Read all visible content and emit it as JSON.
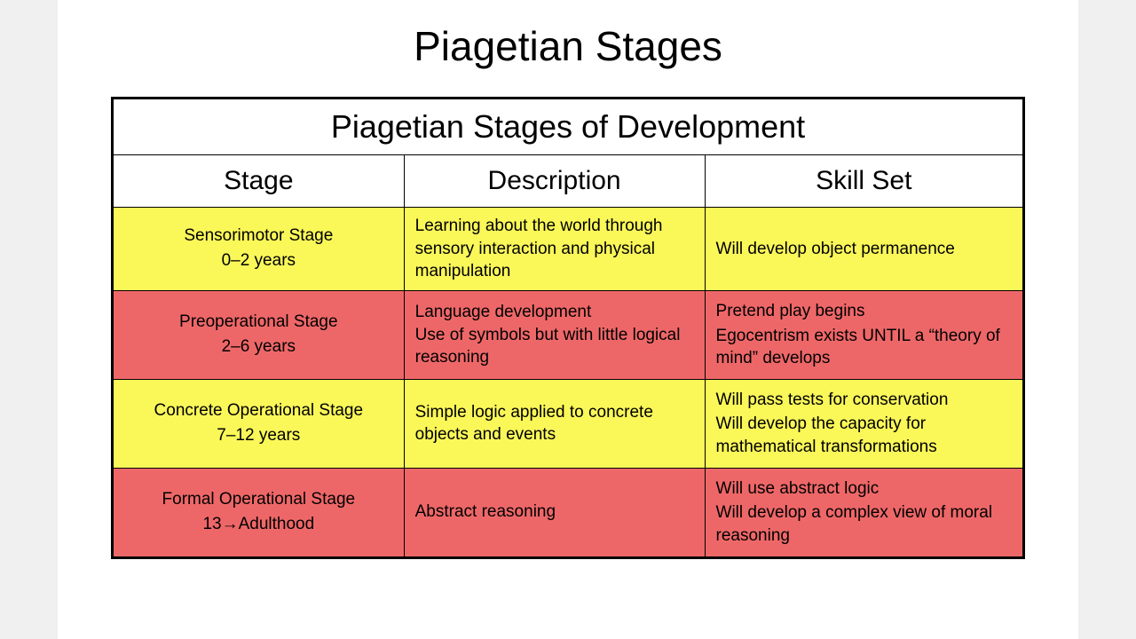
{
  "title": "Piagetian Stages",
  "table_caption": "Piagetian Stages of Development",
  "columns": [
    "Stage",
    "Description",
    "Skill Set"
  ],
  "row_colors": {
    "yellow": "#faf759",
    "pink": "#ee6768"
  },
  "border_color": "#000000",
  "text_color": "#000000",
  "title_fontsize": 46,
  "caption_fontsize": 36,
  "header_fontsize": 30,
  "body_fontsize": 19,
  "rows": [
    {
      "stage_name": "Sensorimotor Stage",
      "stage_age": "0–2 years",
      "description": "Learning about the world through sensory interaction and physical manipulation",
      "skills": [
        "Will develop object permanence"
      ],
      "bg": "#faf759"
    },
    {
      "stage_name": "Preoperational Stage",
      "stage_age": "2–6 years",
      "description": "Language development\nUse of symbols but with little logical reasoning",
      "skills": [
        "Pretend play begins",
        "Egocentrism exists UNTIL a “theory of mind” develops"
      ],
      "bg": "#ee6768"
    },
    {
      "stage_name": "Concrete Operational Stage",
      "stage_age": "7–12 years",
      "description": "Simple logic applied to concrete objects and events",
      "skills": [
        "Will pass tests for conservation",
        "Will develop the capacity for mathematical transformations"
      ],
      "bg": "#faf759"
    },
    {
      "stage_name": "Formal Operational Stage",
      "stage_age": "13→Adulthood",
      "description": "Abstract reasoning",
      "skills": [
        "Will use abstract logic",
        "Will develop a complex view of moral reasoning"
      ],
      "bg": "#ee6768"
    }
  ]
}
